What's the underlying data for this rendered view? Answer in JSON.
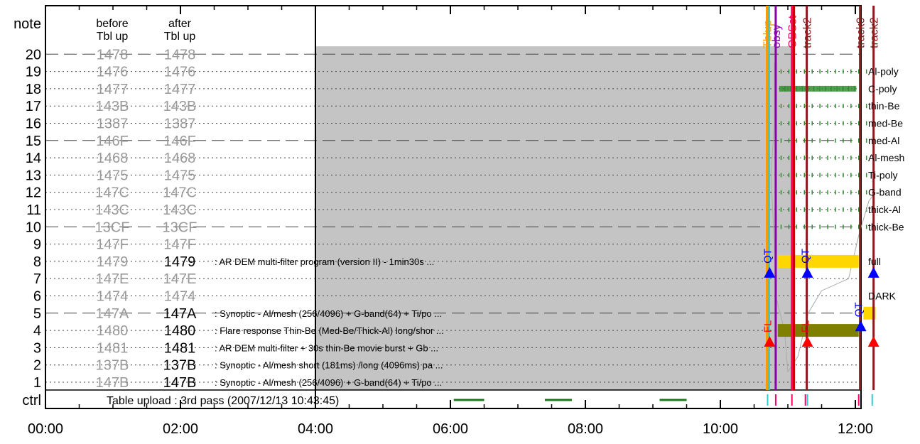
{
  "chart_data": {
    "type": "timeline",
    "title": "",
    "x_axis": {
      "range_hours": [
        0,
        12.3
      ],
      "ticks": [
        {
          "hour": 0,
          "label": "00:00"
        },
        {
          "hour": 2,
          "label": "02:00"
        },
        {
          "hour": 4,
          "label": "04:00"
        },
        {
          "hour": 6,
          "label": "06:00"
        },
        {
          "hour": 8,
          "label": "08:00"
        },
        {
          "hour": 10,
          "label": "10:00"
        },
        {
          "hour": 12,
          "label": "12:00"
        }
      ]
    },
    "y_axis": {
      "label": "note",
      "bottom_row_label": "ctrl",
      "rows": [
        "1",
        "2",
        "3",
        "4",
        "5",
        "6",
        "7",
        "8",
        "9",
        "10",
        "11",
        "12",
        "13",
        "14",
        "15",
        "16",
        "17",
        "18",
        "19",
        "20"
      ]
    },
    "column_headers": {
      "before": [
        "before",
        "Tbl up"
      ],
      "after": [
        "after",
        "Tbl up"
      ]
    },
    "table_rows": [
      {
        "row": 20,
        "before": "1478",
        "after": "1478",
        "active": false,
        "desc": ""
      },
      {
        "row": 19,
        "before": "1476",
        "after": "1476",
        "active": false,
        "desc": ""
      },
      {
        "row": 18,
        "before": "1477",
        "after": "1477",
        "active": false,
        "desc": ""
      },
      {
        "row": 17,
        "before": "143B",
        "after": "143B",
        "active": false,
        "desc": ""
      },
      {
        "row": 16,
        "before": "1387",
        "after": "1387",
        "active": false,
        "desc": ""
      },
      {
        "row": 15,
        "before": "146F",
        "after": "146F",
        "active": false,
        "desc": ""
      },
      {
        "row": 14,
        "before": "1468",
        "after": "1468",
        "active": false,
        "desc": ""
      },
      {
        "row": 13,
        "before": "1475",
        "after": "1475",
        "active": false,
        "desc": ""
      },
      {
        "row": 12,
        "before": "147C",
        "after": "147C",
        "active": false,
        "desc": ""
      },
      {
        "row": 11,
        "before": "143C",
        "after": "143C",
        "active": false,
        "desc": ""
      },
      {
        "row": 10,
        "before": "13CF",
        "after": "13CF",
        "active": false,
        "desc": ""
      },
      {
        "row": 9,
        "before": "147F",
        "after": "147F",
        "active": false,
        "desc": ""
      },
      {
        "row": 8,
        "before": "1479",
        "after": "1479",
        "active": true,
        "desc": ": AR DEM multi-filter program (version II) - 1min30s ..."
      },
      {
        "row": 7,
        "before": "147E",
        "after": "147E",
        "active": false,
        "desc": ""
      },
      {
        "row": 6,
        "before": "1474",
        "after": "1474",
        "active": false,
        "desc": ""
      },
      {
        "row": 5,
        "before": "147A",
        "after": "147A",
        "active": true,
        "desc": ": Synoptic - Al/mesh (256/4096) + G-band(64) + Ti/po ..."
      },
      {
        "row": 4,
        "before": "1480",
        "after": "1480",
        "active": true,
        "desc": ": Flare response Thin-Be (Med-Be/Thick-Al) long/shor ..."
      },
      {
        "row": 3,
        "before": "1481",
        "after": "1481",
        "active": true,
        "desc": ": AR DEM multi-filter + 30s thin-Be movie burst + Gb ..."
      },
      {
        "row": 2,
        "before": "137B",
        "after": "137B",
        "active": true,
        "desc": ": Synoptic - Al/mesh short (181ms) /long (4096ms) pa ..."
      },
      {
        "row": 1,
        "before": "147B",
        "after": "147B",
        "active": true,
        "desc": ": Synoptic - Al/mesh (256/4096) + G-band(64) + Ti/po ..."
      }
    ],
    "ctrl_text": "Table upload : 3rd pass (2007/12/13 10:43:45)",
    "ctrl_dashes": [
      [
        6.05,
        6.5
      ],
      [
        7.4,
        7.8
      ],
      [
        9.1,
        9.5
      ]
    ],
    "right_labels": [
      {
        "row": 19,
        "text": "Al-poly"
      },
      {
        "row": 18,
        "text": "C-poly"
      },
      {
        "row": 17,
        "text": "thin-Be"
      },
      {
        "row": 16,
        "text": "med-Be"
      },
      {
        "row": 15,
        "text": "med-Al"
      },
      {
        "row": 14,
        "text": "Al-mesh"
      },
      {
        "row": 13,
        "text": "Ti-poly"
      },
      {
        "row": 12,
        "text": "G-band"
      },
      {
        "row": 11,
        "text": "thick-Al"
      },
      {
        "row": 10,
        "text": "thick-Be"
      },
      {
        "row": 8,
        "text": "full"
      },
      {
        "row": 6,
        "text": "DARK"
      }
    ],
    "shaded_region": {
      "start": 4.0,
      "end": 11.07,
      "top_row": 20,
      "color": "#c4c4c4"
    },
    "vertical_events": [
      {
        "hour": 10.69,
        "label": "Tblup",
        "color": "#ff9900"
      },
      {
        "hour": 10.72,
        "label": "",
        "color": "#33cccc"
      },
      {
        "hour": 10.82,
        "label": "obsy",
        "color": "#8800aa"
      },
      {
        "hour": 11.06,
        "label": "OBSst",
        "color": "#ff0066"
      },
      {
        "hour": 11.09,
        "label": "",
        "color": "#cc0000"
      },
      {
        "hour": 11.28,
        "label": "track2",
        "color": "#8b1a1a"
      },
      {
        "hour": 12.07,
        "label": "track0",
        "color": "#8b1a1a"
      },
      {
        "hour": 12.27,
        "label": "track2",
        "color": "#8b1a1a"
      }
    ],
    "markers": [
      {
        "hour": 10.73,
        "row": 7.3,
        "kind": "QT",
        "color": "#0000ff"
      },
      {
        "hour": 10.73,
        "row": 3.3,
        "kind": "FL",
        "color": "#ff0000"
      },
      {
        "hour": 11.29,
        "row": 7.3,
        "kind": "QT",
        "color": "#0000ff"
      },
      {
        "hour": 11.29,
        "row": 3.3,
        "kind": "FL",
        "color": "#ff0000"
      },
      {
        "hour": 12.08,
        "row": 4.2,
        "kind": "QT",
        "color": "#0000ff"
      },
      {
        "hour": 12.27,
        "row": 7.3,
        "kind": "",
        "color": "#0000ff"
      },
      {
        "hour": 12.27,
        "row": 3.3,
        "kind": "",
        "color": "#ff0000"
      }
    ],
    "program_bars": [
      {
        "row": 8,
        "start": 10.85,
        "end": 12.05,
        "color": "#ffd700"
      },
      {
        "row": 5,
        "start": 12.12,
        "end": 12.3,
        "color": "#ffd700"
      },
      {
        "row": 4,
        "start": 10.85,
        "end": 12.05,
        "color": "#808000"
      }
    ],
    "filter_ticks_rows": [
      19,
      17,
      16,
      15,
      14,
      13,
      12,
      11,
      10
    ],
    "filter_dense_row": 18,
    "ctrl_ticks": [
      {
        "hour": 10.7,
        "color": "#33cccc"
      },
      {
        "hour": 10.82,
        "color": "#ff0066"
      },
      {
        "hour": 11.06,
        "color": "#ff0066"
      },
      {
        "hour": 11.26,
        "color": "#ff0066"
      },
      {
        "hour": 11.29,
        "color": "#33cccc"
      },
      {
        "hour": 12.05,
        "color": "#ff0066"
      },
      {
        "hour": 12.25,
        "color": "#33cccc"
      }
    ],
    "grid": "dotted-rows, dashed every 5th",
    "colors": {
      "inactive_text": "#999999",
      "active_text": "#000000",
      "filter_tick": "#2e8b2e",
      "ctrl_dash": "#1a7a1a"
    }
  }
}
